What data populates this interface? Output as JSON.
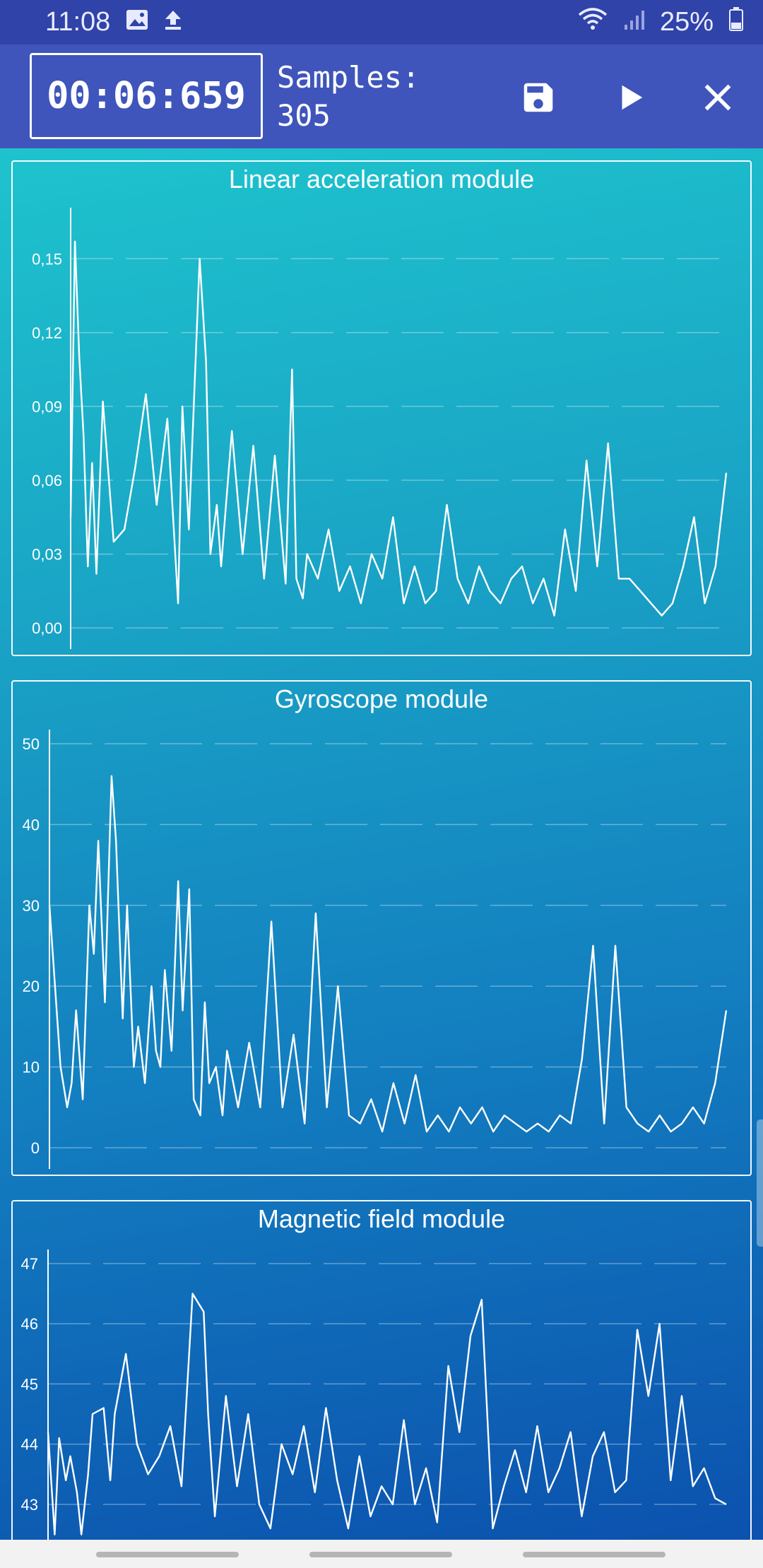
{
  "status": {
    "time": "11:08",
    "battery": "25%",
    "icons": [
      "image-icon",
      "upload-icon",
      "wifi-icon",
      "signal-icon",
      "battery-icon"
    ]
  },
  "toolbar": {
    "timer": "00:06:659",
    "samples_label": "Samples:",
    "samples_value": "305",
    "icons": [
      "save-icon",
      "play-icon",
      "close-icon"
    ]
  },
  "chart_data": [
    {
      "type": "line",
      "title": "Linear acceleration module",
      "ylim": [
        0,
        0.165
      ],
      "yticks": [
        "0,00",
        "0,03",
        "0,06",
        "0,09",
        "0,12",
        "0,15"
      ],
      "tick_values": [
        0,
        0.03,
        0.06,
        0.09,
        0.12,
        0.15
      ],
      "grid": true,
      "x": [
        0,
        2,
        4,
        6,
        8,
        10,
        12,
        15,
        20,
        25,
        30,
        35,
        40,
        45,
        50,
        52,
        55,
        60,
        63,
        65,
        68,
        70,
        75,
        80,
        85,
        90,
        95,
        100,
        103,
        105,
        108,
        110,
        115,
        120,
        125,
        130,
        135,
        140,
        145,
        150,
        155,
        160,
        165,
        170,
        175,
        180,
        185,
        190,
        195,
        200,
        205,
        210,
        215,
        220,
        225,
        230,
        235,
        240,
        245,
        250,
        255,
        260,
        265,
        270,
        275,
        280,
        285,
        290,
        295,
        300,
        305
      ],
      "values": [
        0.045,
        0.157,
        0.11,
        0.078,
        0.025,
        0.067,
        0.022,
        0.092,
        0.035,
        0.04,
        0.065,
        0.095,
        0.05,
        0.085,
        0.01,
        0.09,
        0.04,
        0.15,
        0.108,
        0.03,
        0.05,
        0.025,
        0.08,
        0.03,
        0.074,
        0.02,
        0.07,
        0.018,
        0.105,
        0.02,
        0.012,
        0.03,
        0.02,
        0.04,
        0.015,
        0.025,
        0.01,
        0.03,
        0.02,
        0.045,
        0.01,
        0.025,
        0.01,
        0.015,
        0.05,
        0.02,
        0.01,
        0.025,
        0.015,
        0.01,
        0.02,
        0.025,
        0.01,
        0.02,
        0.005,
        0.04,
        0.015,
        0.068,
        0.025,
        0.075,
        0.02,
        0.02,
        0.015,
        0.01,
        0.005,
        0.01,
        0.025,
        0.045,
        0.01,
        0.025,
        0.063
      ]
    },
    {
      "type": "line",
      "title": "Gyroscope module",
      "ylim": [
        0,
        50
      ],
      "yticks": [
        "0",
        "10",
        "20",
        "30",
        "40",
        "50"
      ],
      "tick_values": [
        0,
        10,
        20,
        30,
        40,
        50
      ],
      "grid": true,
      "x": [
        0,
        2,
        5,
        8,
        10,
        12,
        15,
        18,
        20,
        22,
        25,
        28,
        30,
        33,
        35,
        38,
        40,
        43,
        46,
        48,
        50,
        52,
        55,
        58,
        60,
        63,
        65,
        68,
        70,
        72,
        75,
        78,
        80,
        85,
        90,
        95,
        100,
        105,
        110,
        115,
        120,
        125,
        130,
        135,
        140,
        145,
        150,
        155,
        160,
        165,
        170,
        175,
        180,
        185,
        190,
        195,
        200,
        205,
        210,
        215,
        220,
        225,
        230,
        235,
        240,
        245,
        250,
        255,
        260,
        265,
        270,
        275,
        280,
        285,
        290,
        295,
        300,
        305
      ],
      "values": [
        30,
        22,
        10,
        5,
        8,
        17,
        6,
        30,
        24,
        38,
        18,
        46,
        38,
        16,
        30,
        10,
        15,
        8,
        20,
        12,
        10,
        22,
        12,
        33,
        17,
        32,
        6,
        4,
        18,
        8,
        10,
        4,
        12,
        5,
        13,
        5,
        28,
        5,
        14,
        3,
        29,
        5,
        20,
        4,
        3,
        6,
        2,
        8,
        3,
        9,
        2,
        4,
        2,
        5,
        3,
        5,
        2,
        4,
        3,
        2,
        3,
        2,
        4,
        3,
        11,
        25,
        3,
        25,
        5,
        3,
        2,
        4,
        2,
        3,
        5,
        3,
        8,
        17
      ]
    },
    {
      "type": "line",
      "title": "Magnetic field module",
      "ylim": [
        42.4,
        47
      ],
      "yticks": [
        "43",
        "44",
        "45",
        "46",
        "47"
      ],
      "tick_values": [
        43,
        44,
        45,
        46,
        47
      ],
      "grid": true,
      "x": [
        0,
        3,
        5,
        8,
        10,
        13,
        15,
        18,
        20,
        25,
        28,
        30,
        35,
        40,
        45,
        50,
        55,
        60,
        65,
        70,
        72,
        75,
        80,
        85,
        90,
        95,
        100,
        105,
        110,
        115,
        120,
        125,
        130,
        135,
        140,
        145,
        150,
        155,
        160,
        165,
        170,
        175,
        180,
        185,
        190,
        195,
        200,
        205,
        210,
        215,
        220,
        225,
        230,
        235,
        240,
        245,
        250,
        255,
        260,
        265,
        270,
        275,
        280,
        285,
        290,
        295,
        300,
        305
      ],
      "values": [
        44.2,
        42.5,
        44.1,
        43.4,
        43.8,
        43.2,
        42.5,
        43.5,
        44.5,
        44.6,
        43.4,
        44.5,
        45.5,
        44.0,
        43.5,
        43.8,
        44.3,
        43.3,
        46.5,
        46.2,
        44.5,
        42.8,
        44.8,
        43.3,
        44.5,
        43.0,
        42.6,
        44.0,
        43.5,
        44.3,
        43.2,
        44.6,
        43.4,
        42.6,
        43.8,
        42.8,
        43.3,
        43.0,
        44.4,
        43.0,
        43.6,
        42.7,
        45.3,
        44.2,
        45.8,
        46.4,
        42.6,
        43.3,
        43.9,
        43.2,
        44.3,
        43.2,
        43.6,
        44.2,
        42.8,
        43.8,
        44.2,
        43.2,
        43.4,
        45.9,
        44.8,
        46.0,
        43.4,
        44.8,
        43.3,
        43.6,
        43.1,
        43.0
      ]
    }
  ]
}
